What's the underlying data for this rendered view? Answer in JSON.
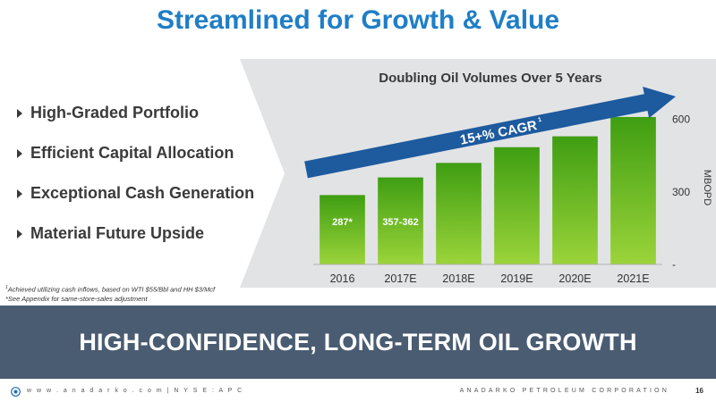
{
  "slide": {
    "title": "Streamlined for Growth & Value",
    "bullets": [
      "High-Graded Portfolio",
      "Efficient Capital Allocation",
      "Exceptional Cash Generation",
      "Material Future Upside"
    ],
    "footnotes": [
      "Achieved utilizing cash inflows, based on WTI $55/Bbl and HH $3/Mcf",
      "*See Appendix for same-store-sales adjustment"
    ],
    "footnote_marker": "1",
    "banner": "HIGH-CONFIDENCE, LONG-TERM OIL GROWTH",
    "footer_left": "w w w . a n a d a r k o . c o m  |  N Y S E :  A P C",
    "footer_right": "ANADARKO PETROLEUM CORPORATION",
    "page_number": "16",
    "colors": {
      "title": "#1f7ec6",
      "bar_light": "#9bd43a",
      "bar_dark": "#3f9e12",
      "arrow": "#1d5a9e",
      "banner": "#4a5c72",
      "band": "#e2e3e5"
    }
  },
  "chart_data": {
    "type": "bar",
    "title": "Doubling Oil Volumes Over 5 Years",
    "categories": [
      "2016",
      "2017E",
      "2018E",
      "2019E",
      "2020E",
      "2021E"
    ],
    "values": [
      287,
      360,
      420,
      485,
      530,
      610
    ],
    "data_labels": [
      "287*",
      "357-362",
      "",
      "",
      "",
      ""
    ],
    "ylabel": "MBOPD",
    "yticks": [
      "-",
      "300",
      "600"
    ],
    "ylim": [
      0,
      680
    ],
    "annotation": {
      "text": "15+% CAGR",
      "superscript": "1"
    },
    "grid": false
  }
}
